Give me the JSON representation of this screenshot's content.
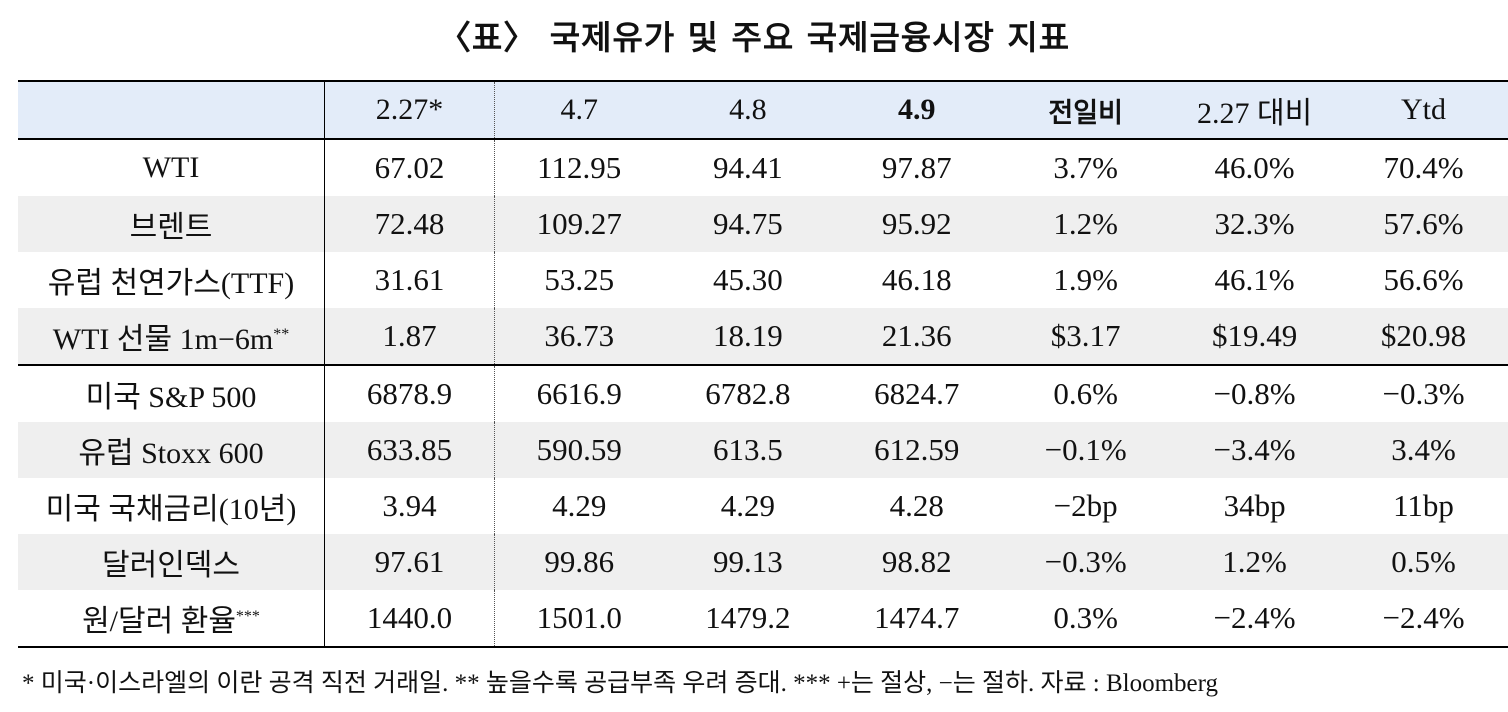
{
  "title": "〈표〉 국제유가 및 주요 국제금융시장 지표",
  "header": [
    "",
    "2.27*",
    "4.7",
    "4.8",
    "4.9",
    "전일비",
    "2.27 대비",
    "Ytd"
  ],
  "rows": [
    {
      "label": "WTI",
      "sup": "",
      "cells": [
        "67.02",
        "112.95",
        "94.41",
        "97.87",
        "3.7%",
        "46.0%",
        "70.4%"
      ]
    },
    {
      "label": "브렌트",
      "sup": "",
      "cells": [
        "72.48",
        "109.27",
        "94.75",
        "95.92",
        "1.2%",
        "32.3%",
        "57.6%"
      ]
    },
    {
      "label": "유럽 천연가스(TTF)",
      "sup": "",
      "cells": [
        "31.61",
        "53.25",
        "45.30",
        "46.18",
        "1.9%",
        "46.1%",
        "56.6%"
      ]
    },
    {
      "label": "WTI 선물 1m−6m",
      "sup": "**",
      "cells": [
        "1.87",
        "36.73",
        "18.19",
        "21.36",
        "$3.17",
        "$19.49",
        "$20.98"
      ]
    },
    {
      "label": "미국 S&P 500",
      "sup": "",
      "cells": [
        "6878.9",
        "6616.9",
        "6782.8",
        "6824.7",
        "0.6%",
        "−0.8%",
        "−0.3%"
      ]
    },
    {
      "label": "유럽 Stoxx 600",
      "sup": "",
      "cells": [
        "633.85",
        "590.59",
        "613.5",
        "612.59",
        "−0.1%",
        "−3.4%",
        "3.4%"
      ]
    },
    {
      "label": "미국 국채금리(10년)",
      "sup": "",
      "cells": [
        "3.94",
        "4.29",
        "4.29",
        "4.28",
        "−2bp",
        "34bp",
        "11bp"
      ]
    },
    {
      "label": "달러인덱스",
      "sup": "",
      "cells": [
        "97.61",
        "99.86",
        "99.13",
        "98.82",
        "−0.3%",
        "1.2%",
        "0.5%"
      ]
    },
    {
      "label": "원/달러 환율",
      "sup": "***",
      "cells": [
        "1440.0",
        "1501.0",
        "1479.2",
        "1474.7",
        "0.3%",
        "−2.4%",
        "−2.4%"
      ]
    }
  ],
  "footnote": "* 미국·이스라엘의 이란 공격 직전 거래일. ** 높을수록 공급부족 우려 증대. *** +는 절상, −는 절하. 자료 : Bloomberg"
}
